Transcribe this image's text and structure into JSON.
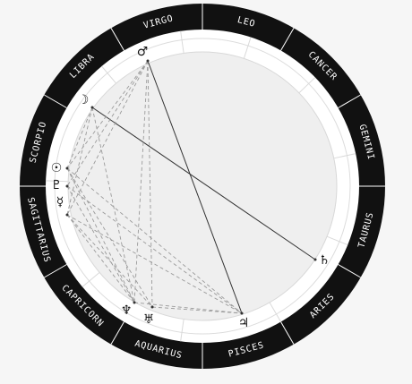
{
  "colors": {
    "background": "#f6f6f6",
    "zodiac_ring": "#111111",
    "zodiac_text": "#ffffff",
    "house_ring_fill": "#ffffff",
    "inner_fill": "#efefef",
    "line_solid": "#333333",
    "line_dashed": "#9a9a9a"
  },
  "zodiac": [
    {
      "name": "LEO",
      "id": "leo"
    },
    {
      "name": "CANCER",
      "id": "cancer"
    },
    {
      "name": "GEMINI",
      "id": "gemini"
    },
    {
      "name": "TAURUS",
      "id": "taurus"
    },
    {
      "name": "ARIES",
      "id": "aries"
    },
    {
      "name": "PISCES",
      "id": "pisces"
    },
    {
      "name": "AQUARIUS",
      "id": "aquarius"
    },
    {
      "name": "CAPRICORN",
      "id": "capricorn"
    },
    {
      "name": "SAGITTARIUS",
      "id": "sagittarius"
    },
    {
      "name": "SCORPIO",
      "id": "scorpio"
    },
    {
      "name": "LIBRA",
      "id": "libra"
    },
    {
      "name": "VIRGO",
      "id": "virgo"
    }
  ],
  "planets": [
    {
      "id": "mars",
      "glyph": "♂"
    },
    {
      "id": "moon",
      "glyph": "☽"
    },
    {
      "id": "sun",
      "glyph": "☉"
    },
    {
      "id": "pluto",
      "glyph": "♇"
    },
    {
      "id": "mercury",
      "glyph": "☿"
    },
    {
      "id": "saturn",
      "glyph": "♄"
    },
    {
      "id": "neptune",
      "glyph": "♆"
    },
    {
      "id": "uranus",
      "glyph": "♅"
    },
    {
      "id": "jupiter",
      "glyph": "♃"
    }
  ],
  "aspects": [
    {
      "from": "mars",
      "to": "jupiter",
      "style": "solid"
    },
    {
      "from": "moon",
      "to": "saturn",
      "style": "solid"
    },
    {
      "from": "mars",
      "to": "sun",
      "style": "dashed"
    },
    {
      "from": "mars",
      "to": "pluto",
      "style": "dashed"
    },
    {
      "from": "mars",
      "to": "mercury",
      "style": "dashed"
    },
    {
      "from": "mars",
      "to": "uranus",
      "style": "dashed"
    },
    {
      "from": "mars",
      "to": "neptune",
      "style": "dashed"
    },
    {
      "from": "moon",
      "to": "sun",
      "style": "dashed"
    },
    {
      "from": "moon",
      "to": "mercury",
      "style": "dashed"
    },
    {
      "from": "moon",
      "to": "neptune",
      "style": "dashed"
    },
    {
      "from": "sun",
      "to": "jupiter",
      "style": "dashed"
    },
    {
      "from": "sun",
      "to": "neptune",
      "style": "dashed"
    },
    {
      "from": "sun",
      "to": "uranus",
      "style": "dashed"
    },
    {
      "from": "pluto",
      "to": "jupiter",
      "style": "dashed"
    },
    {
      "from": "pluto",
      "to": "neptune",
      "style": "dashed"
    },
    {
      "from": "mercury",
      "to": "jupiter",
      "style": "dashed"
    },
    {
      "from": "mercury",
      "to": "neptune",
      "style": "dashed"
    },
    {
      "from": "mercury",
      "to": "uranus",
      "style": "dashed"
    },
    {
      "from": "neptune",
      "to": "jupiter",
      "style": "dashed"
    },
    {
      "from": "uranus",
      "to": "jupiter",
      "style": "dashed"
    }
  ]
}
